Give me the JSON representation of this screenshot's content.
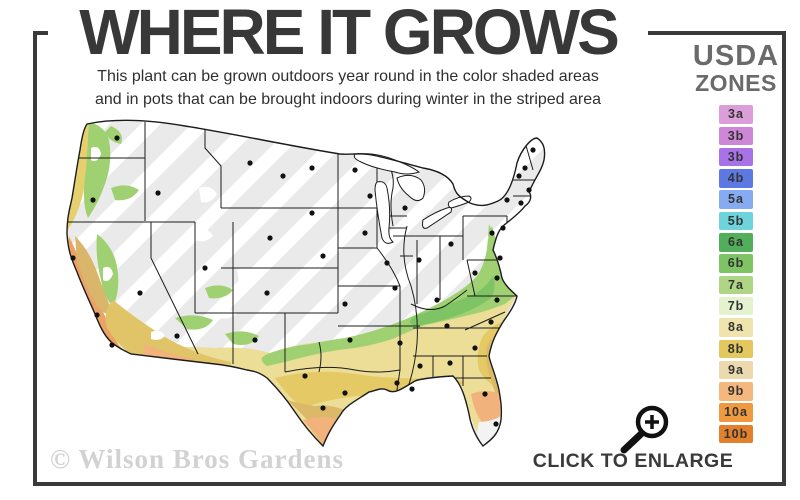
{
  "title": "WHERE IT GROWS",
  "subtitle_line1": "This plant can be grown outdoors year round in the color shaded areas",
  "subtitle_line2": "and in pots that can be brought indoors during winter in the striped area",
  "legend": {
    "title_line1": "USDA",
    "title_line2": "ZONES",
    "zones": [
      {
        "label": "3a",
        "color": "#dc9ed8"
      },
      {
        "label": "3b",
        "color": "#cd87d6"
      },
      {
        "label": "3b",
        "color": "#a873e6"
      },
      {
        "label": "4b",
        "color": "#5b79e0"
      },
      {
        "label": "5a",
        "color": "#86abf0"
      },
      {
        "label": "5b",
        "color": "#6fd3dc"
      },
      {
        "label": "6a",
        "color": "#52ae5b"
      },
      {
        "label": "6b",
        "color": "#7ec464"
      },
      {
        "label": "7a",
        "color": "#aed685"
      },
      {
        "label": "7b",
        "color": "#e4f2cf"
      },
      {
        "label": "8a",
        "color": "#efe4ad"
      },
      {
        "label": "8b",
        "color": "#e3c75f"
      },
      {
        "label": "9a",
        "color": "#ecd9ad"
      },
      {
        "label": "9b",
        "color": "#f4b77d"
      },
      {
        "label": "10a",
        "color": "#ef9a41"
      },
      {
        "label": "10b",
        "color": "#e2802c"
      }
    ]
  },
  "map": {
    "region": "United States",
    "striped_meaning": "grow in pots, bring indoors during winter",
    "shaded_meaning": "grown outdoors year round"
  },
  "footer": {
    "enlarge_label": "CLICK TO ENLARGE"
  },
  "watermark": "© Wilson Bros Gardens",
  "colors": {
    "frame": "#3a3a3a",
    "title": "#383838",
    "legend_title": "#6a6a6a",
    "map_base_gray": "#eaeaea",
    "map_green": "#9fd173",
    "map_yellow": "#ecdd97",
    "map_tan": "#dcb869",
    "map_peach": "#f2b27c",
    "map_orange": "#e59a52"
  }
}
